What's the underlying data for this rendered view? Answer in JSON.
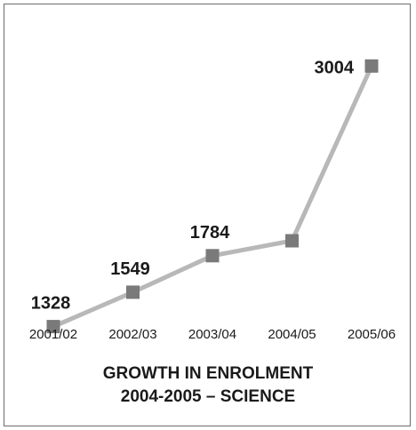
{
  "chart_data": {
    "type": "line",
    "categories": [
      "2001/02",
      "2002/03",
      "2003/04",
      "2004/05",
      "2005/06"
    ],
    "series": [
      {
        "values": [
          1328,
          1549,
          1784,
          1880,
          3004
        ]
      }
    ],
    "data_labels": [
      "1328",
      "1549",
      "1784",
      "",
      "3004"
    ],
    "title_lines": [
      "GROWTH IN ENROLMENT",
      "2004-2005 – SCIENCE"
    ],
    "xlabel": "",
    "ylabel": "",
    "ylim": [
      1200,
      3200
    ],
    "grid": false,
    "legend": "none",
    "line_color": "#b8b8b8",
    "marker_color": "#7a7a7a"
  }
}
